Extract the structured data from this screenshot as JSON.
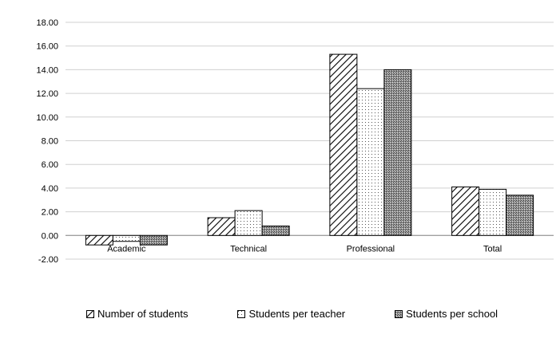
{
  "chart_data": {
    "type": "bar",
    "categories": [
      "Academic",
      "Technical",
      "Professional",
      "Total"
    ],
    "series": [
      {
        "name": "Number of students",
        "values": [
          -0.8,
          1.5,
          15.3,
          4.1
        ],
        "pattern": "diagonal-hatch"
      },
      {
        "name": "Students per teacher",
        "values": [
          -0.5,
          2.1,
          12.4,
          3.9
        ],
        "pattern": "dotted"
      },
      {
        "name": "Students per school",
        "values": [
          -0.8,
          0.8,
          14.0,
          3.4
        ],
        "pattern": "dense-crosshatch"
      }
    ],
    "ylim": [
      -2,
      18
    ],
    "yticks": [
      "-2.00",
      "0.00",
      "2.00",
      "4.00",
      "6.00",
      "8.00",
      "10.00",
      "12.00",
      "14.00",
      "16.00",
      "18.00"
    ],
    "grid": true,
    "legend_position": "bottom",
    "title": "",
    "xlabel": "",
    "ylabel": ""
  },
  "legend": {
    "items": [
      "Number of students",
      "Students per teacher",
      "Students per school"
    ]
  }
}
